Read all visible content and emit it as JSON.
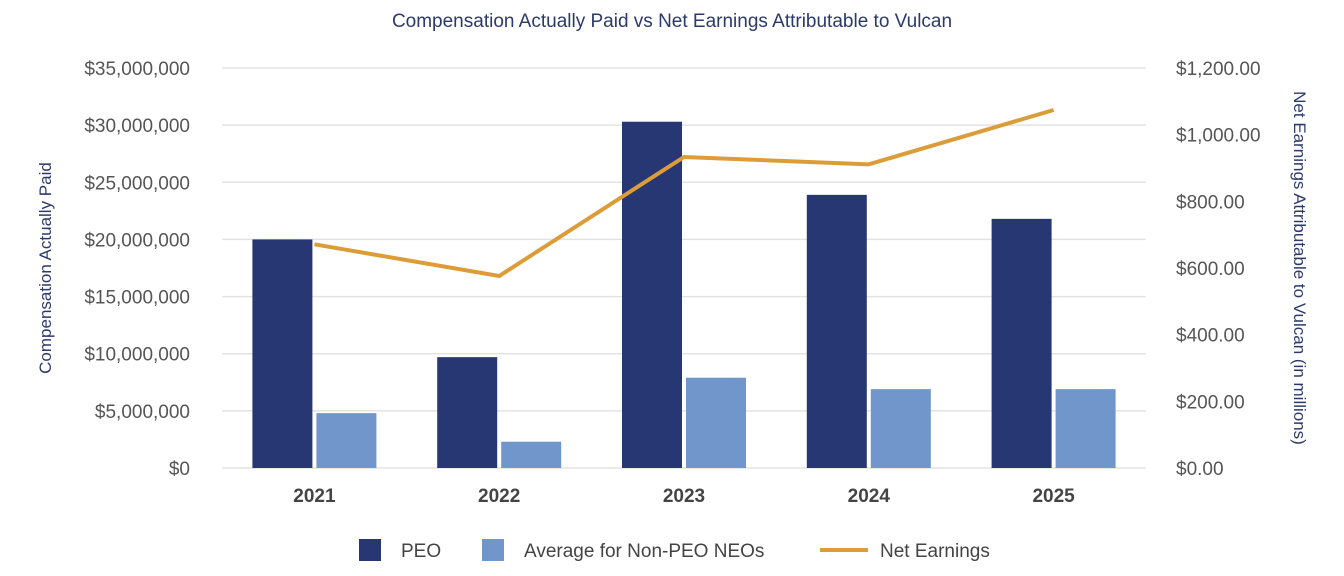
{
  "chart_data": {
    "type": "bar",
    "title": "Compensation Actually Paid vs Net Earnings Attributable to Vulcan",
    "categories": [
      "2021",
      "2022",
      "2023",
      "2024",
      "2025"
    ],
    "ylabel_left": "Compensation Actually Paid",
    "ylabel_right": "Net Earnings Attributable to Vulcan (in millions)",
    "ylim_left": [
      0,
      35000000
    ],
    "ylim_right": [
      0,
      1200
    ],
    "left_ticks": [
      "$0",
      "$5,000,000",
      "$10,000,000",
      "$15,000,000",
      "$20,000,000",
      "$25,000,000",
      "$30,000,000",
      "$35,000,000"
    ],
    "right_ticks": [
      "$0.00",
      "$200.00",
      "$400.00",
      "$600.00",
      "$800.00",
      "$1,000.00",
      "$1,200.00"
    ],
    "grid": true,
    "legend_position": "bottom",
    "series": [
      {
        "name": "PEO",
        "type": "bar",
        "axis": "left",
        "color": "#263774",
        "values": [
          20000000,
          9700000,
          30300000,
          23900000,
          21800000
        ]
      },
      {
        "name": "Average for Non-PEO NEOs",
        "type": "bar",
        "axis": "left",
        "color": "#7196cb",
        "values": [
          4800000,
          2300000,
          7900000,
          6900000,
          6900000
        ]
      },
      {
        "name": "Net Earnings",
        "type": "line",
        "axis": "right",
        "color": "#dc9c38",
        "values": [
          671,
          576,
          933,
          911,
          1074
        ]
      }
    ]
  }
}
